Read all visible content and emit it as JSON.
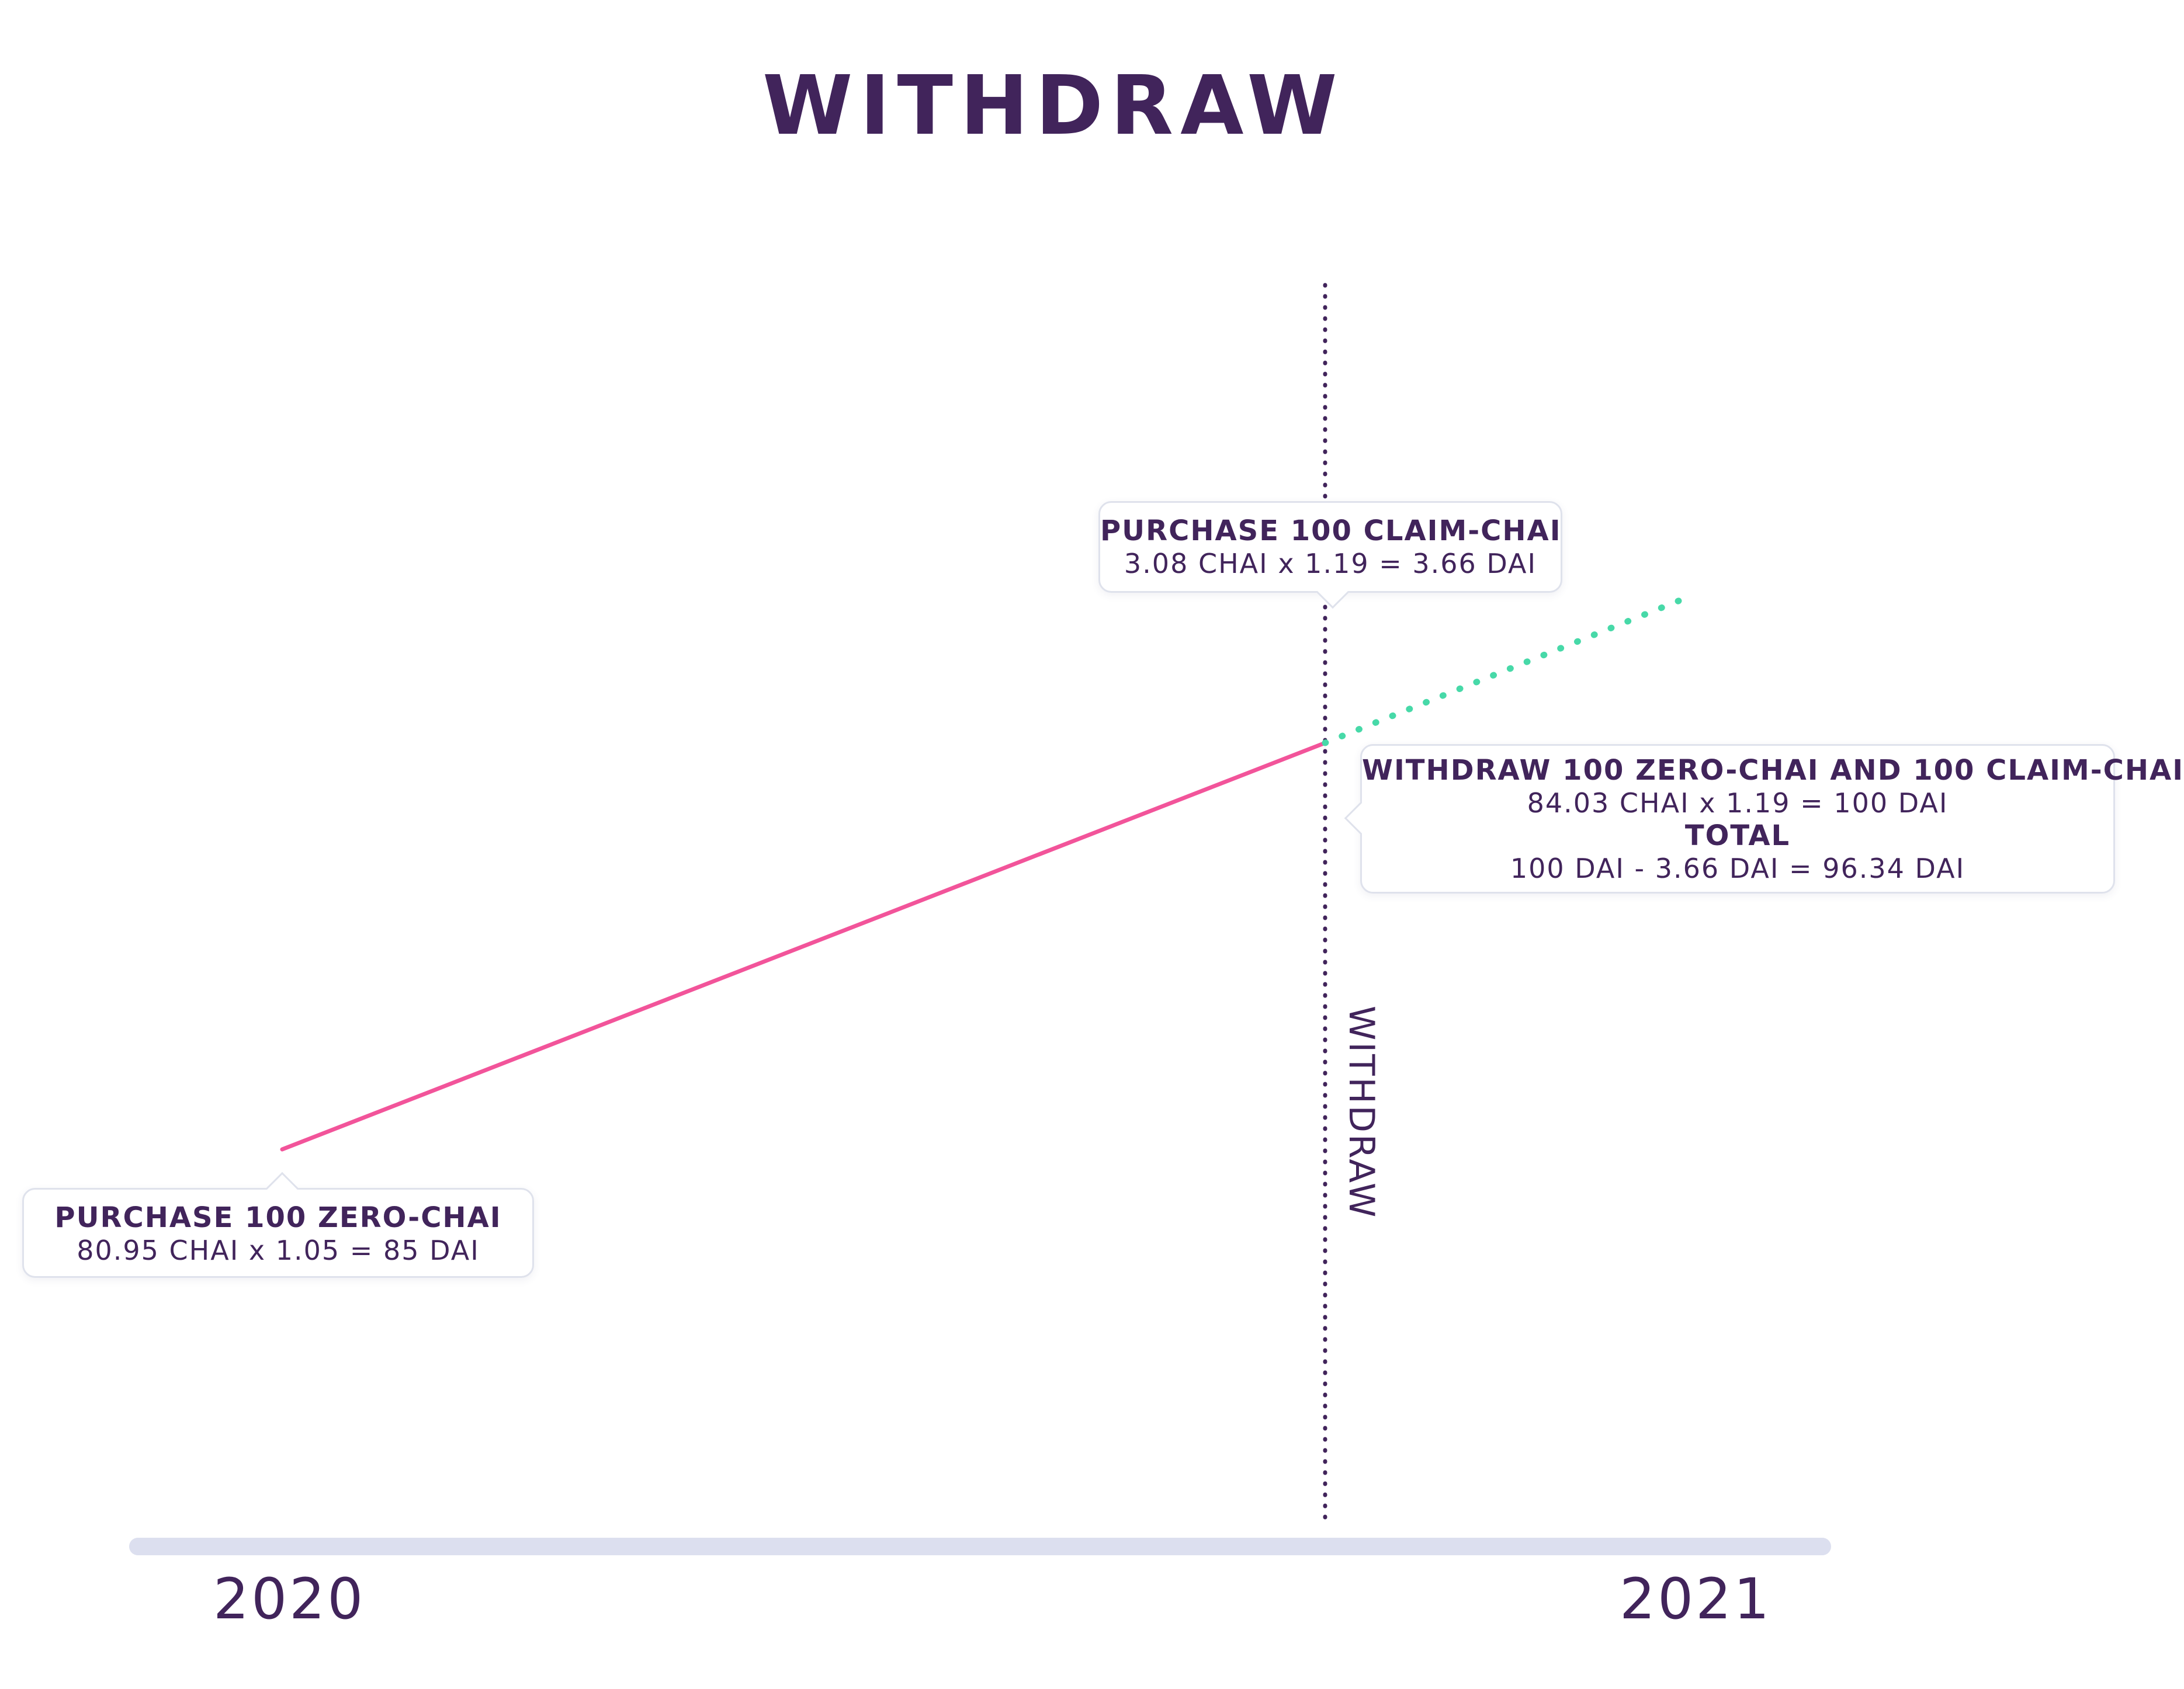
{
  "title": "WITHDRAW",
  "timeline": {
    "start_label": "2020",
    "end_label": "2021",
    "event_label": "WITHDRAW"
  },
  "callouts": {
    "zero_purchase": {
      "heading": "PURCHASE 100 ZERO-CHAI",
      "line1": "80.95 CHAI x 1.05 = 85 DAI"
    },
    "claim_purchase": {
      "heading": "PURCHASE 100 CLAIM-CHAI",
      "line1": "3.08 CHAI x 1.19 = 3.66 DAI"
    },
    "withdraw": {
      "heading": "WITHDRAW 100 ZERO-CHAI AND 100 CLAIM-CHAI",
      "line1": "84.03 CHAI x 1.19 = 100 DAI",
      "total_label": "TOTAL",
      "line2": "100 DAI - 3.66 DAI = 96.34 DAI"
    }
  },
  "colors": {
    "text": "#41245b",
    "zero_line": "#f2549a",
    "claim_line": "#47d9a8",
    "axis": "#dcdfef",
    "marker": "#41245b"
  }
}
